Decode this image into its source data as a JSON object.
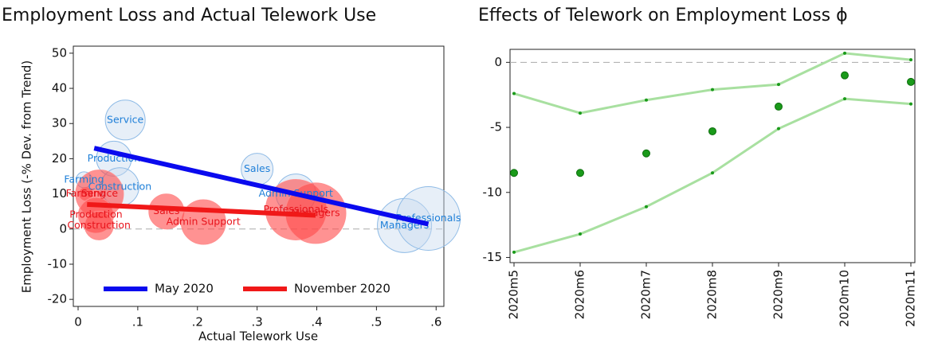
{
  "chart_data": [
    {
      "type": "bubble",
      "title": "Employment Loss and Actual Telework Use",
      "x_label": "Actual Telework Use",
      "y_label": "Employment Loss (-% Dev. from Trend)",
      "xlim": [
        -0.008,
        0.613
      ],
      "ylim": [
        -22,
        52
      ],
      "xticks": [
        0,
        {
          "value": 0.1,
          "label": ".1"
        },
        {
          "value": 0.2,
          "label": ".2"
        },
        {
          "value": 0.3,
          "label": ".3"
        },
        {
          "value": 0.4,
          "label": ".4"
        },
        {
          "value": 0.5,
          "label": ".5"
        },
        {
          "value": 0.6,
          "label": ".6"
        }
      ],
      "yticks": [
        -20,
        -10,
        0,
        10,
        20,
        30,
        40,
        50
      ],
      "reference_line": 0,
      "legend": "bottom",
      "series": [
        {
          "name": "May 2020",
          "color": "#0a0aee",
          "bubble_color": "#c9dcef",
          "label_color": "#1e7fd8",
          "labels": [
            "Service",
            "Production",
            "Farming",
            "Construction",
            "Sales",
            "Admin Support",
            "Managers",
            "Professionals"
          ],
          "x": [
            0.079,
            0.06,
            0.01,
            0.07,
            0.3,
            0.365,
            0.547,
            0.587
          ],
          "values": [
            31,
            20,
            14,
            12,
            17,
            10,
            1,
            3
          ],
          "sizes": [
            25,
            22,
            10,
            24,
            20,
            25,
            34,
            40
          ],
          "fit_x": [
            0.027,
            0.587
          ],
          "fit_values": [
            23,
            1.4
          ]
        },
        {
          "name": "November 2020",
          "color": "#f01818",
          "bubble_color": "#ff4a4a",
          "label_color": "#e8141c",
          "labels": [
            "Farming",
            "Service",
            "Production",
            "Construction",
            "Sales",
            "Admin Support",
            "Professionals",
            "Managers"
          ],
          "x": [
            0.013,
            0.036,
            0.03,
            0.035,
            0.148,
            0.21,
            0.365,
            0.398
          ],
          "values": [
            10,
            10,
            4,
            1,
            5,
            2,
            5.5,
            4.5
          ],
          "sizes": [
            8,
            30,
            22,
            18,
            22,
            28,
            38,
            38
          ],
          "fit_x": [
            0.015,
            0.398
          ],
          "fit_values": [
            7,
            3.9
          ]
        }
      ]
    },
    {
      "type": "coefficients",
      "title": "Effects of Telework on Employment Loss ϕ",
      "categories": [
        "2020m5",
        "2020m6",
        "2020m7",
        "2020m8",
        "2020m9",
        "2020m10",
        "2020m11"
      ],
      "values": [
        -8.5,
        -8.5,
        -7.0,
        -5.3,
        -3.4,
        -1.0,
        -1.5
      ],
      "upper": [
        -2.4,
        -3.9,
        -2.9,
        -2.1,
        -1.7,
        0.7,
        0.2
      ],
      "lower": [
        -14.6,
        -13.2,
        -11.1,
        -8.5,
        -5.1,
        -2.8,
        -3.2
      ],
      "color": "#1a9a1a",
      "band_color": "#a8e0a0",
      "ylim": [
        -15.4,
        1
      ],
      "yticks": [
        -15,
        -10,
        -5,
        0
      ],
      "reference_line": 0
    }
  ]
}
